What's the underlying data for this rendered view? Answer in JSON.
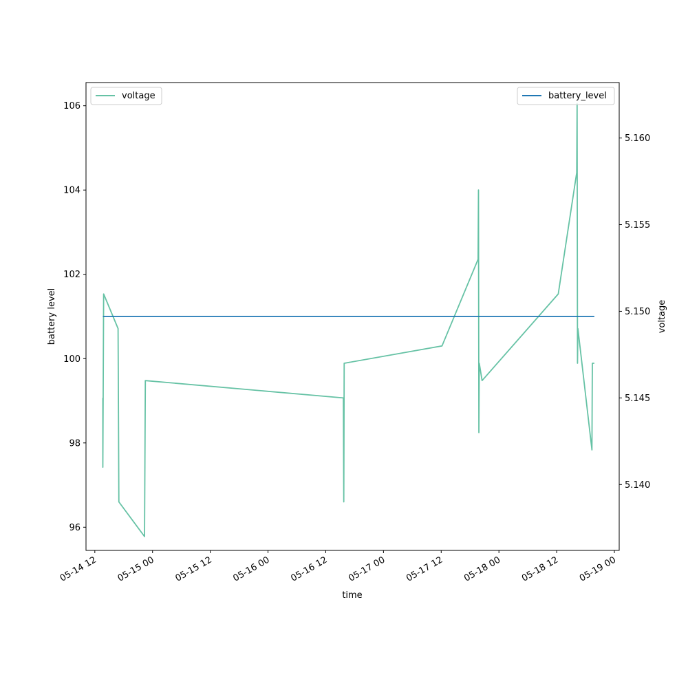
{
  "chart_data": {
    "type": "line",
    "xlabel": "time",
    "ylabel_left": "battery level",
    "ylabel_right": "voltage",
    "x_ticks": [
      "05-14 12",
      "05-15 00",
      "05-15 12",
      "05-16 00",
      "05-16 12",
      "05-17 00",
      "05-17 12",
      "05-18 00",
      "05-18 12",
      "05-19 00"
    ],
    "y_left_ticks": [
      "96",
      "98",
      "100",
      "102",
      "104",
      "106"
    ],
    "y_right_ticks": [
      "5.140",
      "5.145",
      "5.150",
      "5.155",
      "5.160"
    ],
    "xlim": [
      "2024-05-14T10:10",
      "2024-05-19T01:00"
    ],
    "ylim_left": [
      95.45,
      106.55
    ],
    "ylim_right": [
      5.1362,
      5.1632
    ],
    "series": [
      {
        "name": "voltage",
        "axis": "right",
        "color": "#66c2a5",
        "points": [
          {
            "t": "2024-05-14T13:40",
            "v": 5.145
          },
          {
            "t": "2024-05-14T13:40",
            "v": 5.141
          },
          {
            "t": "2024-05-14T13:50",
            "v": 5.151
          },
          {
            "t": "2024-05-14T16:50",
            "v": 5.149
          },
          {
            "t": "2024-05-14T17:00",
            "v": 5.139
          },
          {
            "t": "2024-05-14T22:20",
            "v": 5.137
          },
          {
            "t": "2024-05-14T22:30",
            "v": 5.146
          },
          {
            "t": "2024-05-16T15:40",
            "v": 5.145
          },
          {
            "t": "2024-05-16T15:45",
            "v": 5.139
          },
          {
            "t": "2024-05-16T15:50",
            "v": 5.147
          },
          {
            "t": "2024-05-17T12:10",
            "v": 5.148
          },
          {
            "t": "2024-05-17T19:40",
            "v": 5.153
          },
          {
            "t": "2024-05-17T19:45",
            "v": 5.157
          },
          {
            "t": "2024-05-17T19:50",
            "v": 5.143
          },
          {
            "t": "2024-05-17T19:55",
            "v": 5.147
          },
          {
            "t": "2024-05-17T20:30",
            "v": 5.146
          },
          {
            "t": "2024-05-18T12:20",
            "v": 5.151
          },
          {
            "t": "2024-05-18T16:10",
            "v": 5.158
          },
          {
            "t": "2024-05-18T16:15",
            "v": 5.162
          },
          {
            "t": "2024-05-18T16:20",
            "v": 5.147
          },
          {
            "t": "2024-05-18T16:25",
            "v": 5.149
          },
          {
            "t": "2024-05-18T19:20",
            "v": 5.142
          },
          {
            "t": "2024-05-18T19:25",
            "v": 5.147
          },
          {
            "t": "2024-05-18T19:50",
            "v": 5.147
          }
        ]
      },
      {
        "name": "battery_level",
        "axis": "left",
        "color": "#1f77b4",
        "points": [
          {
            "t": "2024-05-14T13:40",
            "v": 101
          },
          {
            "t": "2024-05-18T19:50",
            "v": 101
          }
        ]
      }
    ],
    "legends": [
      {
        "label": "voltage",
        "placement": "upper-left"
      },
      {
        "label": "battery_level",
        "placement": "upper-right"
      }
    ],
    "grid": false
  }
}
